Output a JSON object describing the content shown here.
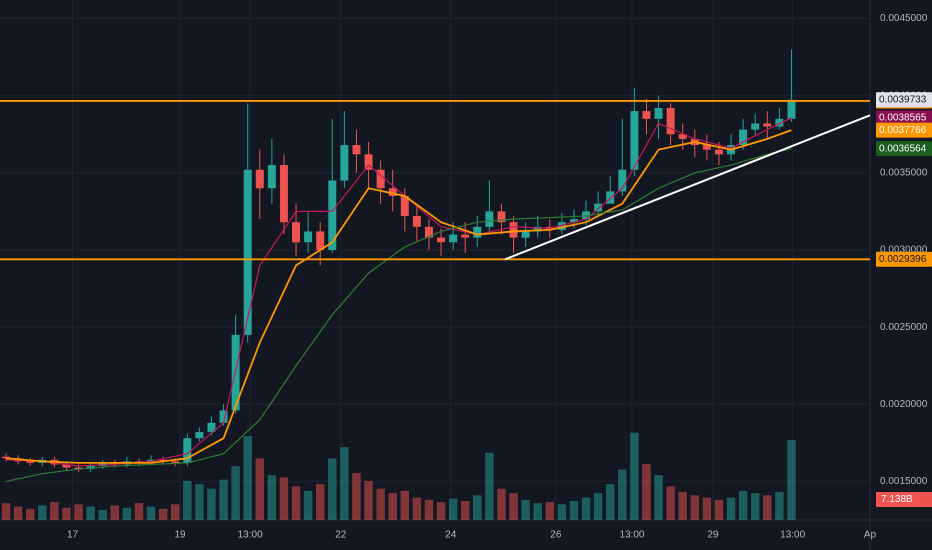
{
  "chart_data": {
    "type": "candlestick",
    "xlim": [
      -0.5,
      71.5
    ],
    "xticks": [
      {
        "value": 5.5,
        "label": "17"
      },
      {
        "value": 14.4,
        "label": "19"
      },
      {
        "value": 20.2,
        "label": "13:00"
      },
      {
        "value": 27.7,
        "label": "22"
      },
      {
        "value": 36.8,
        "label": "24"
      },
      {
        "value": 45.5,
        "label": "26"
      },
      {
        "value": 51.8,
        "label": "13:00"
      },
      {
        "value": 58.5,
        "label": "29"
      },
      {
        "value": 65.1,
        "label": "13:00"
      },
      {
        "value": 71.5,
        "label": "Ap"
      }
    ],
    "ylim": [
      0.00125,
      0.00462
    ],
    "yticks": [
      {
        "value": 0.0015,
        "label": "0.0015000"
      },
      {
        "value": 0.002,
        "label": "0.0020000"
      },
      {
        "value": 0.0025,
        "label": "0.0025000"
      },
      {
        "value": 0.003,
        "label": "0.0030000"
      },
      {
        "value": 0.0035,
        "label": "0.0035000"
      },
      {
        "value": 0.004,
        "label": "0.0040000"
      },
      {
        "value": 0.0045,
        "label": "0.0045000"
      }
    ],
    "grid": true,
    "up_color": "#26a69a",
    "down_color": "#ef5350",
    "open": [
      0.00166,
      0.00165,
      0.00163,
      0.00162,
      0.00164,
      0.00161,
      0.00159,
      0.00158,
      0.0016,
      0.00162,
      0.00161,
      0.00163,
      0.00162,
      0.00164,
      0.00163,
      0.00162,
      0.00178,
      0.00182,
      0.00188,
      0.00196,
      0.00245,
      0.00352,
      0.0034,
      0.00355,
      0.00318,
      0.00305,
      0.00312,
      0.003,
      0.00345,
      0.00368,
      0.00362,
      0.00352,
      0.0034,
      0.00335,
      0.00322,
      0.00315,
      0.00308,
      0.00305,
      0.0031,
      0.00308,
      0.00315,
      0.00325,
      0.00318,
      0.00308,
      0.00312,
      0.00315,
      0.00313,
      0.00318,
      0.0032,
      0.00325,
      0.0033,
      0.00338,
      0.00352,
      0.0039,
      0.00385,
      0.00392,
      0.00375,
      0.00372,
      0.00368,
      0.00365,
      0.00362,
      0.00368,
      0.00378,
      0.00382,
      0.0038,
      0.00385
    ],
    "high": [
      0.00168,
      0.00167,
      0.00165,
      0.00166,
      0.00166,
      0.00163,
      0.00161,
      0.00162,
      0.00164,
      0.00164,
      0.00166,
      0.00165,
      0.00167,
      0.00166,
      0.00165,
      0.00181,
      0.00185,
      0.00192,
      0.002,
      0.00258,
      0.00395,
      0.00365,
      0.00372,
      0.00362,
      0.0033,
      0.00325,
      0.00318,
      0.00385,
      0.0039,
      0.00378,
      0.0037,
      0.00358,
      0.00352,
      0.0034,
      0.00328,
      0.0032,
      0.00314,
      0.00318,
      0.00318,
      0.00322,
      0.00345,
      0.0033,
      0.00322,
      0.00318,
      0.00322,
      0.0032,
      0.00324,
      0.00326,
      0.00332,
      0.00338,
      0.00348,
      0.00385,
      0.00405,
      0.00398,
      0.004,
      0.00395,
      0.00382,
      0.00378,
      0.00375,
      0.0037,
      0.00375,
      0.00385,
      0.00388,
      0.0039,
      0.00392,
      0.0043
    ],
    "low": [
      0.00163,
      0.00161,
      0.0016,
      0.0016,
      0.00159,
      0.00157,
      0.00156,
      0.00156,
      0.00158,
      0.00159,
      0.00159,
      0.0016,
      0.00161,
      0.00161,
      0.0016,
      0.0016,
      0.00176,
      0.0018,
      0.00186,
      0.00194,
      0.0024,
      0.0032,
      0.0033,
      0.0031,
      0.00296,
      0.00298,
      0.0029,
      0.00298,
      0.0034,
      0.0035,
      0.0034,
      0.0033,
      0.00325,
      0.00312,
      0.00305,
      0.003,
      0.00296,
      0.003,
      0.00298,
      0.00302,
      0.0031,
      0.0031,
      0.00298,
      0.00302,
      0.00308,
      0.00308,
      0.0031,
      0.00314,
      0.00316,
      0.00322,
      0.0033,
      0.00335,
      0.00348,
      0.00375,
      0.00372,
      0.00368,
      0.00365,
      0.0036,
      0.00358,
      0.00355,
      0.00358,
      0.00365,
      0.00374,
      0.00372,
      0.00378,
      0.00383
    ],
    "close": [
      0.00165,
      0.00163,
      0.00162,
      0.00164,
      0.00161,
      0.00159,
      0.00158,
      0.0016,
      0.00162,
      0.00161,
      0.00163,
      0.00162,
      0.00164,
      0.00163,
      0.00162,
      0.00178,
      0.00182,
      0.00188,
      0.00196,
      0.00245,
      0.00352,
      0.0034,
      0.00355,
      0.00318,
      0.00305,
      0.00312,
      0.003,
      0.00345,
      0.00368,
      0.00362,
      0.00352,
      0.0034,
      0.00335,
      0.00322,
      0.00315,
      0.00308,
      0.00305,
      0.0031,
      0.00308,
      0.00315,
      0.00325,
      0.00318,
      0.00308,
      0.00312,
      0.00315,
      0.00313,
      0.00318,
      0.0032,
      0.00325,
      0.0033,
      0.00338,
      0.00352,
      0.0039,
      0.00385,
      0.00392,
      0.00375,
      0.00372,
      0.00368,
      0.00365,
      0.00362,
      0.00368,
      0.00378,
      0.00382,
      0.0038,
      0.00385,
      0.0039733
    ],
    "volume": {
      "vlim": [
        0,
        10
      ],
      "values": [
        1.5,
        1.2,
        1.0,
        1.3,
        1.6,
        1.1,
        1.4,
        1.2,
        0.9,
        1.3,
        1.1,
        1.5,
        1.2,
        1.0,
        1.4,
        3.5,
        3.2,
        2.8,
        3.6,
        4.8,
        7.5,
        5.5,
        4.0,
        3.8,
        3.0,
        2.6,
        3.2,
        5.5,
        6.5,
        4.2,
        3.5,
        2.8,
        2.4,
        2.6,
        2.0,
        1.8,
        1.6,
        1.9,
        1.7,
        2.2,
        6.0,
        2.8,
        2.4,
        1.8,
        1.5,
        1.6,
        1.4,
        1.7,
        2.0,
        2.4,
        3.2,
        4.5,
        7.8,
        5.0,
        4.0,
        3.0,
        2.5,
        2.2,
        2.0,
        1.8,
        2.0,
        2.6,
        2.4,
        2.2,
        2.5,
        7.138
      ],
      "last_label": "7.138B",
      "tag_color": "#ef5350"
    },
    "moving_averages": [
      {
        "color": "#c2185b",
        "x": [
          0,
          3,
          6,
          9,
          12,
          15,
          18,
          21,
          24,
          27,
          30,
          33,
          36,
          39,
          42,
          45,
          48,
          51,
          54,
          57,
          60,
          63,
          65
        ],
        "values": [
          0.00164,
          0.00163,
          0.0016,
          0.00161,
          0.00163,
          0.00168,
          0.00188,
          0.0029,
          0.00325,
          0.00325,
          0.00355,
          0.00335,
          0.00315,
          0.0031,
          0.00315,
          0.00314,
          0.0032,
          0.0034,
          0.00382,
          0.00372,
          0.00366,
          0.00378,
          0.0038565
        ],
        "tag_color": "#880e4f"
      },
      {
        "color": "#ff9800",
        "x": [
          0,
          3,
          6,
          9,
          12,
          15,
          18,
          21,
          24,
          27,
          30,
          33,
          36,
          39,
          42,
          45,
          48,
          51,
          54,
          57,
          60,
          63,
          65
        ],
        "values": [
          0.00165,
          0.00163,
          0.00162,
          0.00162,
          0.00162,
          0.00165,
          0.00178,
          0.0024,
          0.0029,
          0.00305,
          0.0034,
          0.00335,
          0.00318,
          0.0031,
          0.00312,
          0.00313,
          0.00318,
          0.0033,
          0.00365,
          0.0037,
          0.00365,
          0.00372,
          0.0037766
        ],
        "tag_color": "#ff9800"
      },
      {
        "color": "#2e7d32",
        "x": [
          0,
          3,
          6,
          9,
          12,
          15,
          18,
          21,
          24,
          27,
          30,
          33,
          36,
          39,
          42,
          45,
          48,
          51,
          54,
          57,
          60,
          63,
          65
        ],
        "values": [
          0.0015,
          0.00155,
          0.00158,
          0.0016,
          0.00161,
          0.00162,
          0.00168,
          0.0019,
          0.00225,
          0.00258,
          0.00285,
          0.00302,
          0.00312,
          0.00318,
          0.0032,
          0.00321,
          0.00322,
          0.00326,
          0.0034,
          0.0035,
          0.00355,
          0.00362,
          0.0036564
        ],
        "tag_color": "#1b5e20"
      }
    ],
    "levels": [
      {
        "value": 0.0039657,
        "color": "#ff9800"
      },
      {
        "value": 0.0029396,
        "color": "#ff9800"
      }
    ],
    "trendline": {
      "color": "#ffffff",
      "x": [
        41.3,
        71.5
      ],
      "values": [
        0.0029396,
        0.003873
      ]
    },
    "last_tag_color": "#e0e3eb"
  }
}
